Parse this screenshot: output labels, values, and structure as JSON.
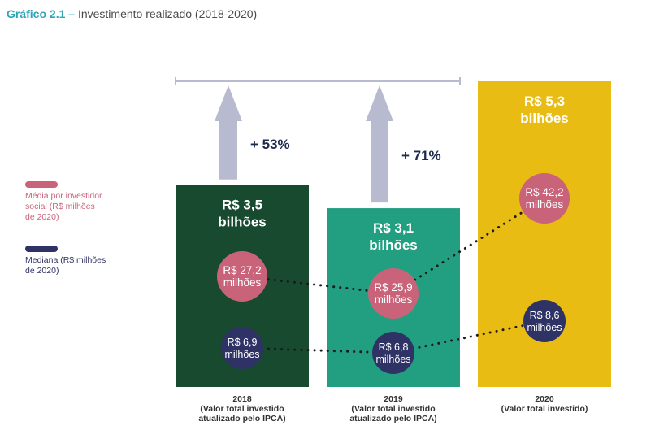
{
  "header": {
    "prefix": "Gráfico 2.1",
    "separator": "–",
    "title": "Investimento realizado (2018-2020)"
  },
  "legend": [
    {
      "label": "Média por investidor\nsocial (R$ milhões\nde 2020)",
      "color": "#c9637a"
    },
    {
      "label": "Mediana (R$ milhões\nde 2020)",
      "color": "#2f3264"
    }
  ],
  "chart_data": {
    "type": "bar",
    "categories": [
      "2018",
      "2019",
      "2020"
    ],
    "category_notes": [
      "(Valor total investido\natualizado pelo IPCA)",
      "(Valor total investido\natualizado pelo IPCA)",
      "(Valor total investido)"
    ],
    "values": [
      3.5,
      3.1,
      5.3
    ],
    "value_labels": [
      "R$ 3,5\nbilhões",
      "R$ 3,1\nbilhões",
      "R$ 5,3\nbilhões"
    ],
    "bar_colors": [
      "#174a2e",
      "#229e80",
      "#e9bc13"
    ],
    "growth": [
      {
        "from": "2018",
        "to": "2020",
        "label": "+ 53%"
      },
      {
        "from": "2019",
        "to": "2020",
        "label": "+ 71%"
      }
    ],
    "series": [
      {
        "values": [
          27.2,
          25.9,
          42.2
        ],
        "labels": [
          "R$ 27,2\nmilhões",
          "R$ 25,9\nmilhões",
          "R$ 42,2\nmilhões"
        ],
        "color": "#c9637a"
      },
      {
        "values": [
          6.9,
          6.8,
          8.6
        ],
        "labels": [
          "R$ 6,9\nmilhões",
          "R$ 6,8\nmilhões",
          "R$ 8,6\nmilhões"
        ],
        "color": "#2f3264"
      }
    ],
    "arrow_color": "#b8bbcf",
    "bracket_color": "#b8bbcf"
  }
}
